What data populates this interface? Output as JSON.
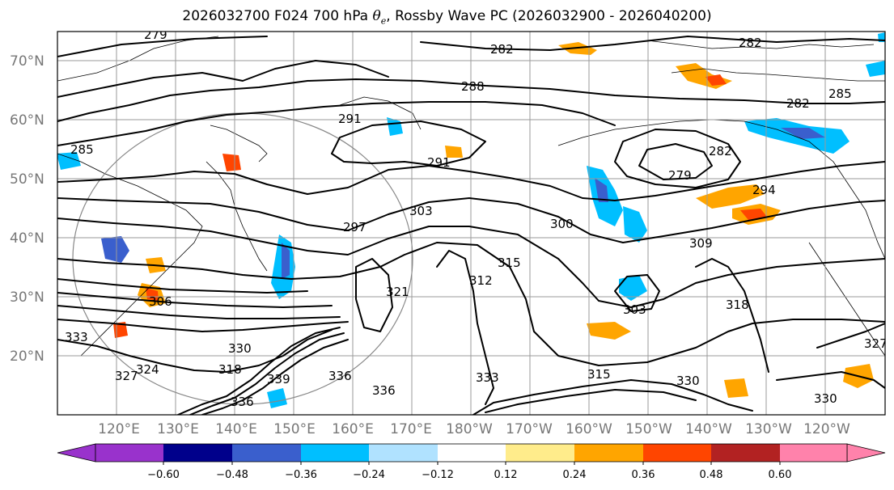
{
  "title": {
    "prefix": "2026032700 F024 700 hPa ",
    "symbol": "θ",
    "symbol_sub": "e",
    "suffix": ", Rossby Wave PC (2026032900 - 2026040200)"
  },
  "map": {
    "lat_labels": [
      "70°N",
      "60°N",
      "50°N",
      "40°N",
      "30°N",
      "20°N"
    ],
    "lon_labels": [
      "120°E",
      "130°E",
      "140°E",
      "150°E",
      "160°E",
      "170°E",
      "180°W",
      "170°W",
      "160°W",
      "150°W",
      "140°W",
      "130°W",
      "120°W"
    ],
    "contour_labels": [
      "279",
      "282",
      "282",
      "282",
      "285",
      "285",
      "288",
      "291",
      "291",
      "279",
      "282",
      "294",
      "297",
      "303",
      "300",
      "309",
      "312",
      "315",
      "321",
      "303",
      "318",
      "306",
      "324",
      "318",
      "327",
      "330",
      "333",
      "336",
      "339",
      "336",
      "333",
      "336",
      "330",
      "315",
      "327",
      "330"
    ],
    "colors": {
      "land": "#ffffff",
      "contour": "#000000",
      "grid": "#9a9a9a"
    }
  },
  "colorbar": {
    "ticks": [
      "−0.60",
      "−0.48",
      "−0.36",
      "−0.24",
      "−0.12",
      "0.12",
      "0.24",
      "0.36",
      "0.48",
      "0.60"
    ],
    "colors": [
      "#9932cc",
      "#00008b",
      "#3a5fcd",
      "#00bfff",
      "#b0e2ff",
      "#ffffff",
      "#ffec8b",
      "#ffa500",
      "#ff4500",
      "#b22222",
      "#ff82ab"
    ]
  }
}
